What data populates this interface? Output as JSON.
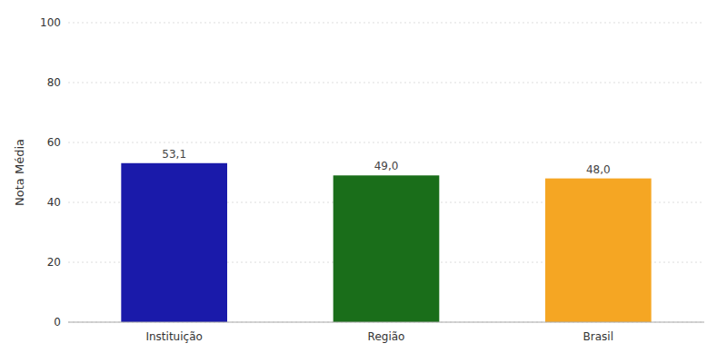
{
  "chart_data": {
    "type": "bar",
    "categories": [
      "Instituição",
      "Região",
      "Brasil"
    ],
    "values": [
      53.1,
      49.0,
      48.0
    ],
    "value_labels": [
      "53,1",
      "49,0",
      "48,0"
    ],
    "data_labels": true,
    "colors": [
      "#1a1aaa",
      "#1a6e1a",
      "#f5a623"
    ],
    "ylabel": "Nota Média",
    "ylim": [
      0,
      100
    ],
    "yticks": [
      0,
      20,
      40,
      60,
      80,
      100
    ],
    "grid": true
  }
}
